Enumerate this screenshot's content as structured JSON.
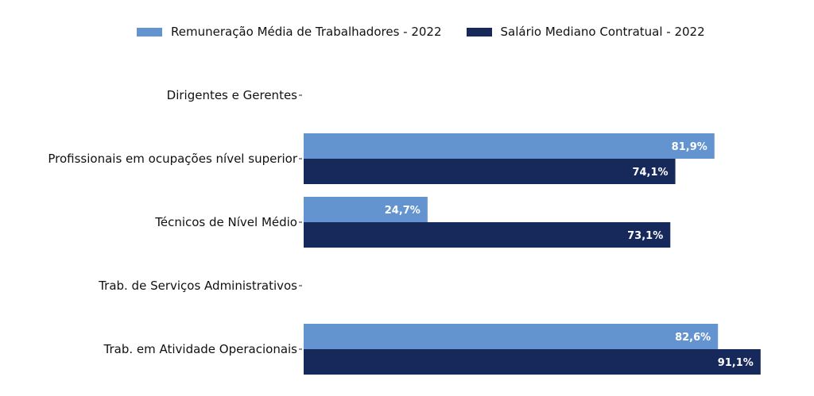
{
  "colors": {
    "series0": "#6394D0",
    "series1": "#17285A",
    "axis": "#222222"
  },
  "chart_data": {
    "type": "bar",
    "orientation": "horizontal",
    "categories": [
      "Dirigentes e Gerentes",
      "Profissionais em ocupações nível superior",
      "Técnicos de Nível Médio",
      "Trab. de Serviços Administrativos",
      "Trab. em Atividade Operacionais"
    ],
    "series": [
      {
        "name": "Remuneração Média de Trabalhadores - 2022",
        "values": [
          null,
          81.9,
          24.7,
          null,
          82.6
        ],
        "labels": [
          "",
          "81,9%",
          "24,7%",
          "",
          "82,6%"
        ]
      },
      {
        "name": "Salário Mediano Contratual - 2022",
        "values": [
          null,
          74.1,
          73.1,
          null,
          91.1
        ],
        "labels": [
          "",
          "74,1%",
          "73,1%",
          "",
          "91,1%"
        ]
      }
    ],
    "xlim": [
      0,
      100
    ],
    "grid": false,
    "legend_position": "top"
  }
}
